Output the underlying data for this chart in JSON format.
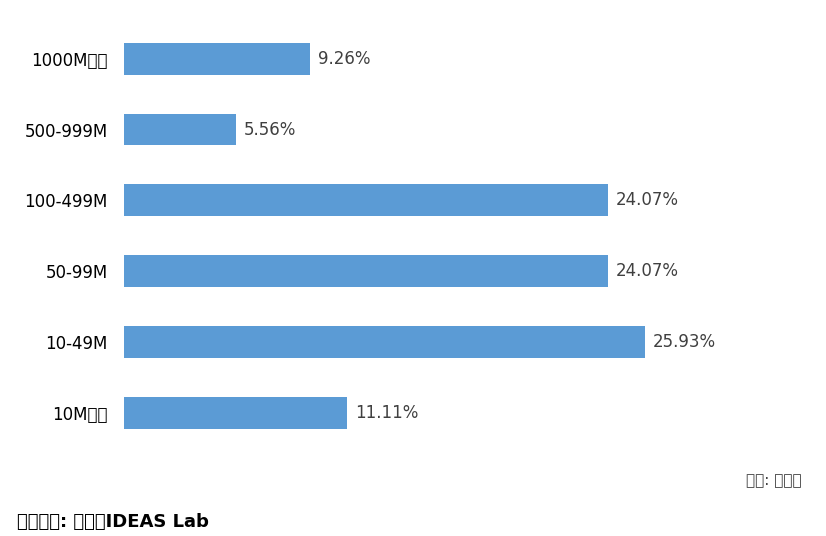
{
  "categories": [
    "1000M以上",
    "500-999M",
    "100-499M",
    "50-99M",
    "10-49M",
    "10M以下"
  ],
  "values": [
    9.26,
    5.56,
    24.07,
    24.07,
    25.93,
    11.11
  ],
  "labels": [
    "9.26%",
    "5.56%",
    "24.07%",
    "24.07%",
    "25.93%",
    "11.11%"
  ],
  "bar_color": "#5B9BD5",
  "background_color": "#FFFFFF",
  "xlim": [
    0,
    30
  ],
  "source_text": "資料來源: 資策會IDEAS Lab",
  "unit_text": "單位: 新台幣",
  "bar_height": 0.45,
  "label_fontsize": 12,
  "tick_fontsize": 12,
  "source_fontsize": 13,
  "unit_fontsize": 11
}
